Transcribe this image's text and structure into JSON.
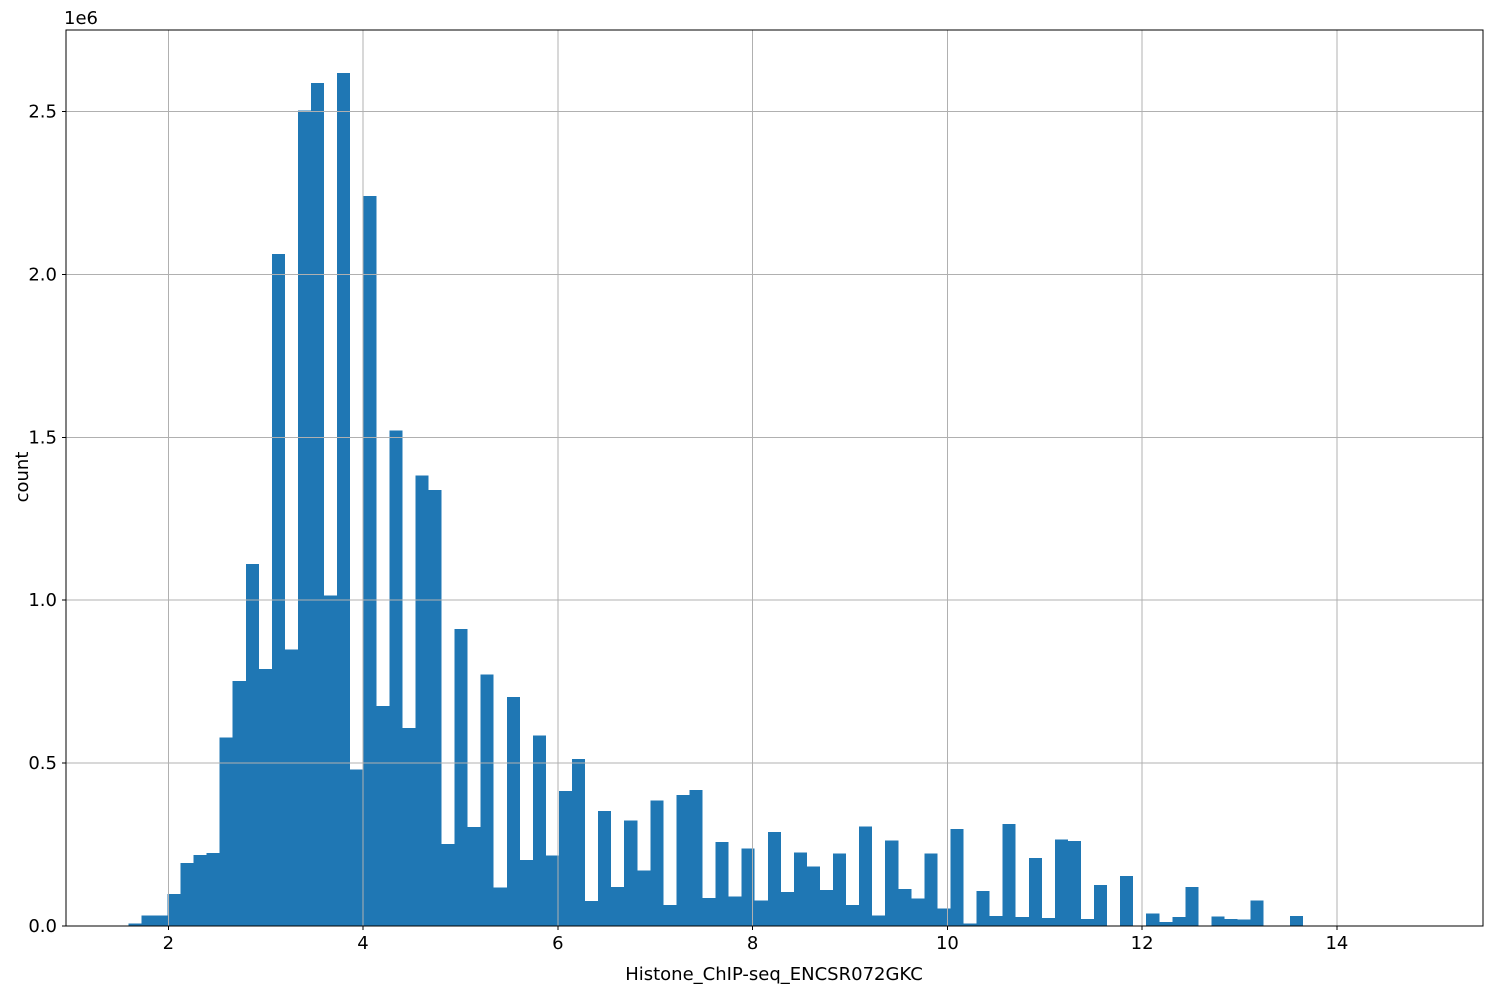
{
  "figure": {
    "xlabel": "Histone_ChIP-seq_ENCSR072GKC",
    "ylabel": "count",
    "offset_text": "1e6"
  },
  "chart_data": {
    "type": "bar",
    "subtype": "histogram",
    "title": "",
    "xlabel": "Histone_ChIP-seq_ENCSR072GKC",
    "ylabel": "count",
    "y_offset_label": "1e6",
    "bar_color": "#1f77b4",
    "grid_color": "#b0b0b0",
    "spine_color": "#000000",
    "grid": true,
    "legend_position": "none",
    "xlim": [
      0.95,
      15.5
    ],
    "ylim": [
      0,
      2750000
    ],
    "x_ticks": [
      2,
      4,
      6,
      8,
      10,
      12,
      14
    ],
    "x_tick_labels": [
      "2",
      "4",
      "6",
      "8",
      "10",
      "12",
      "14"
    ],
    "y_ticks": [
      0,
      500000,
      1000000,
      1500000,
      2000000,
      2500000
    ],
    "y_tick_labels": [
      "0.0",
      "0.5",
      "1.0",
      "1.5",
      "2.0",
      "2.5"
    ],
    "bin_start": 1.59,
    "bin_width": 0.134,
    "counts": [
      7000,
      32000,
      32000,
      98000,
      194000,
      218000,
      224000,
      578000,
      752000,
      1111000,
      789000,
      2062000,
      849000,
      2503000,
      2588000,
      1015000,
      2618000,
      480000,
      2240000,
      675000,
      1521000,
      608000,
      1383000,
      1338000,
      252000,
      912000,
      304000,
      772000,
      118000,
      703000,
      202000,
      585000,
      217000,
      414000,
      513000,
      77000,
      353000,
      120000,
      324000,
      171000,
      385000,
      65000,
      402000,
      417000,
      86000,
      258000,
      91000,
      238000,
      79000,
      288000,
      104000,
      225000,
      182000,
      110000,
      223000,
      65000,
      306000,
      32000,
      263000,
      114000,
      84000,
      222000,
      53000,
      297000,
      8000,
      107000,
      31000,
      313000,
      27000,
      208000,
      24000,
      266000,
      261000,
      21000,
      126000,
      0,
      153000,
      0,
      39000,
      13000,
      27000,
      119000,
      0,
      29000,
      22000,
      20000,
      79000,
      0,
      0,
      30000
    ]
  }
}
